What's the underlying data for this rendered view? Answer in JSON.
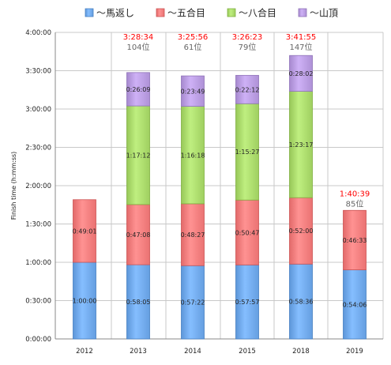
{
  "chart_data": {
    "type": "bar",
    "stacked": true,
    "title": "",
    "xlabel": "",
    "ylabel": "Finish time (h:mm:ss)",
    "ylim": [
      0,
      240
    ],
    "yunit": "minutes",
    "yticks": [
      {
        "value": 0,
        "label": "0:00:00"
      },
      {
        "value": 30,
        "label": "0:30:00"
      },
      {
        "value": 60,
        "label": "1:00:00"
      },
      {
        "value": 90,
        "label": "1:30:00"
      },
      {
        "value": 120,
        "label": "2:00:00"
      },
      {
        "value": 150,
        "label": "2:30:00"
      },
      {
        "value": 180,
        "label": "3:00:00"
      },
      {
        "value": 210,
        "label": "3:30:00"
      },
      {
        "value": 240,
        "label": "4:00:00"
      }
    ],
    "grid": true,
    "legend_position": "top",
    "categories": [
      "2012",
      "2013",
      "2014",
      "2015",
      "2018",
      "2019"
    ],
    "series": [
      {
        "name": "～馬返し",
        "color": "#6fa8ea",
        "values": [
          60.0,
          58.083,
          57.367,
          57.95,
          58.6,
          54.1
        ],
        "labels": [
          "1:00:00",
          "0:58:05",
          "0:57:22",
          "0:57:57",
          "0:58:36",
          "0:54:06"
        ]
      },
      {
        "name": "～五合目",
        "color": "#f47c7c",
        "values": [
          49.017,
          47.133,
          48.45,
          50.783,
          52.0,
          46.55
        ],
        "labels": [
          "0:49:01",
          "0:47:08",
          "0:48:27",
          "0:50:47",
          "0:52:00",
          "0:46:33"
        ]
      },
      {
        "name": "～八合目",
        "color": "#a9d96a",
        "values": [
          null,
          77.2,
          76.3,
          75.45,
          83.283,
          null
        ],
        "labels": [
          "",
          "1:17:12",
          "1:16:18",
          "1:15:27",
          "1:23:17",
          ""
        ]
      },
      {
        "name": "～山頂",
        "color": "#b89be0",
        "values": [
          null,
          26.15,
          23.817,
          22.2,
          28.033,
          null
        ],
        "labels": [
          "",
          "0:26:09",
          "0:23:49",
          "0:22:12",
          "0:28:02",
          ""
        ]
      }
    ],
    "totals": [
      "",
      "3:28:34",
      "3:25:56",
      "3:26:23",
      "3:41:55",
      "1:40:39"
    ],
    "ranks": [
      "",
      "104位",
      "61位",
      "79位",
      "147位",
      "85位"
    ]
  }
}
